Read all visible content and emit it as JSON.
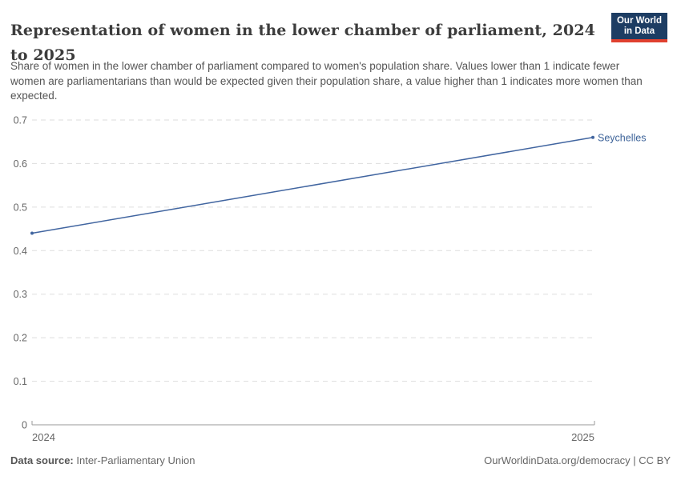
{
  "header": {
    "title": "Representation of women in the lower chamber of parliament, 2024 to 2025",
    "subtitle": "Share of women in the lower chamber of parliament compared to women's population share. Values lower than 1 indicate fewer women are parliamentarians than would be expected given their population share, a value higher than 1 indicates more women than expected."
  },
  "logo": {
    "line1": "Our World",
    "line2": "in Data",
    "bg_color": "#1d3d63",
    "bar_color": "#e0402f"
  },
  "chart_data": {
    "type": "line",
    "title": "Representation of women in the lower chamber of parliament, 2024 to 2025",
    "x": [
      2024,
      2025
    ],
    "xtick_labels": [
      "2024",
      "2025"
    ],
    "series": [
      {
        "name": "Seychelles",
        "values": [
          0.44,
          0.66
        ],
        "color": "#4165a0"
      }
    ],
    "ylim": [
      0,
      0.7
    ],
    "yticks": [
      0,
      0.1,
      0.2,
      0.3,
      0.4,
      0.5,
      0.6,
      0.7
    ],
    "xlabel": "",
    "ylabel": "",
    "grid": "horizontal-dashed",
    "legend_position": "line-end-label"
  },
  "colors": {
    "grid": "#dddddd",
    "axis": "#9a9a9a",
    "tick_label": "#666666",
    "series_label": "#3d6399"
  },
  "footer": {
    "source_label": "Data source:",
    "source_value": " Inter-Parliamentary Union",
    "right_text": "OurWorldinData.org/democracy | CC BY"
  }
}
